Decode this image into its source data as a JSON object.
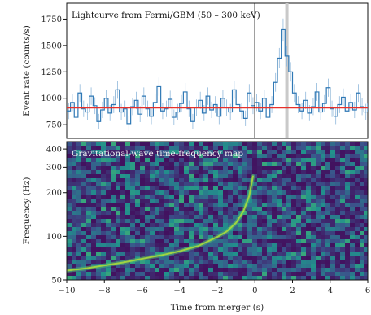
{
  "chart_data": [
    {
      "type": "line",
      "title": "",
      "annotation": "Lightcurve from Fermi/GBM (50 – 300 keV)",
      "xlabel": "",
      "ylabel": "Event rate (counts/s)",
      "xlim": [
        -10,
        6
      ],
      "ylim": [
        620,
        1900
      ],
      "yticks": [
        750,
        1000,
        1250,
        1500,
        1750
      ],
      "background_level": 910,
      "background_color": "#e8302a",
      "trigger_time": 0,
      "highlight_time": 1.7,
      "series": [
        {
          "x": [
            -10.0,
            -9.8,
            -9.6,
            -9.4,
            -9.2,
            -9.0,
            -8.8,
            -8.6,
            -8.4,
            -8.2,
            -8.0,
            -7.8,
            -7.6,
            -7.4,
            -7.2,
            -7.0,
            -6.8,
            -6.6,
            -6.4,
            -6.2,
            -6.0,
            -5.8,
            -5.6,
            -5.4,
            -5.2,
            -5.0,
            -4.8,
            -4.6,
            -4.4,
            -4.2,
            -4.0,
            -3.8,
            -3.6,
            -3.4,
            -3.2,
            -3.0,
            -2.8,
            -2.6,
            -2.4,
            -2.2,
            -2.0,
            -1.8,
            -1.6,
            -1.4,
            -1.2,
            -1.0,
            -0.8,
            -0.6,
            -0.4,
            -0.2,
            0.0,
            0.2,
            0.4,
            0.6,
            0.8,
            1.0,
            1.2,
            1.4,
            1.6,
            1.8,
            2.0,
            2.2,
            2.4,
            2.6,
            2.8,
            3.0,
            3.2,
            3.4,
            3.6,
            3.8,
            4.0,
            4.2,
            4.4,
            4.6,
            4.8,
            5.0,
            5.2,
            5.4,
            5.6,
            5.8,
            6.0
          ],
          "values": [
            880,
            960,
            820,
            1050,
            900,
            870,
            1020,
            930,
            780,
            890,
            1000,
            860,
            940,
            1080,
            870,
            900,
            760,
            920,
            980,
            850,
            1020,
            900,
            830,
            960,
            1110,
            880,
            900,
            990,
            820,
            870,
            950,
            1060,
            900,
            780,
            910,
            980,
            860,
            1020,
            890,
            940,
            830,
            1000,
            910,
            870,
            1080,
            940,
            880,
            810,
            1050,
            930,
            960,
            880,
            1000,
            820,
            940,
            1150,
            1380,
            1650,
            1400,
            1250,
            1050,
            940,
            880,
            980,
            860,
            920,
            1060,
            870,
            950,
            1100,
            900,
            830,
            940,
            1010,
            880,
            960,
            890,
            1050,
            920,
            870,
            950
          ]
        }
      ]
    },
    {
      "type": "heatmap",
      "title": "",
      "annotation": "Gravitational-wave time-frequency map",
      "xlabel": "Time from merger (s)",
      "ylabel": "Frequency (Hz)",
      "xlim": [
        -10,
        6
      ],
      "ylim": [
        50,
        450
      ],
      "yscale": "log",
      "xticks": [
        -10,
        -8,
        -6,
        -4,
        -2,
        0,
        2,
        4,
        6
      ],
      "yticks": [
        50,
        100,
        200,
        300,
        400
      ],
      "colormap": "viridis",
      "chirp_track": {
        "x": [
          -10.0,
          -9.0,
          -8.0,
          -7.0,
          -6.0,
          -5.0,
          -4.0,
          -3.0,
          -2.0,
          -1.5,
          -1.0,
          -0.6,
          -0.3,
          -0.1
        ],
        "y": [
          58,
          60,
          63,
          66,
          70,
          74,
          79,
          86,
          99,
          108,
          124,
          150,
          190,
          260
        ]
      }
    }
  ]
}
